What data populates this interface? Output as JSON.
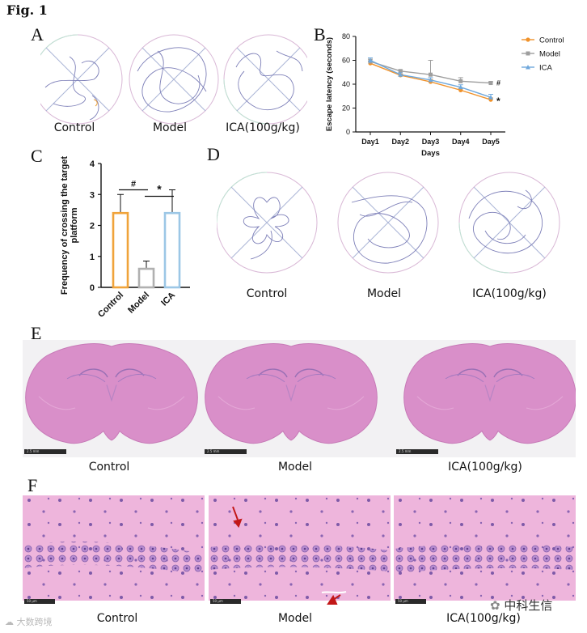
{
  "figure": {
    "title": "Fig. 1"
  },
  "panels": {
    "A": {
      "letter": "A",
      "captions": [
        "Control",
        "Model",
        "ICA(100g/kg)"
      ]
    },
    "B": {
      "letter": "B"
    },
    "C": {
      "letter": "C"
    },
    "D": {
      "letter": "D",
      "captions": [
        "Control",
        "Model",
        "ICA(100g/kg)"
      ]
    },
    "E": {
      "letter": "E",
      "captions": [
        "Control",
        "Model",
        "ICA(100g/kg)"
      ],
      "scalebar_label": "2.5 mm"
    },
    "F": {
      "letter": "F",
      "captions": [
        "Control",
        "Model",
        "ICA(100g/kg)"
      ],
      "scalebar_label": "50 μm"
    }
  },
  "chart_data": [
    {
      "id": "B",
      "type": "line",
      "ylabel": "Escape latency (seconds)",
      "xlabel": "Days",
      "categories": [
        "Day1",
        "Day2",
        "Day3",
        "Day4",
        "Day5"
      ],
      "ylim": [
        0,
        80
      ],
      "yticks": [
        0,
        20,
        40,
        60,
        80
      ],
      "series": [
        {
          "name": "Control",
          "color": "#f0922b",
          "marker": "circle",
          "values": [
            57.5,
            47.5,
            42,
            35,
            27
          ],
          "errors": [
            1.5,
            1,
            2,
            1.5,
            1.5
          ]
        },
        {
          "name": "Model",
          "color": "#9e9e9e",
          "marker": "square",
          "values": [
            59,
            51,
            48,
            42.5,
            41
          ],
          "errors": [
            2,
            1,
            12,
            3,
            1
          ]
        },
        {
          "name": "ICA",
          "color": "#6fa8dc",
          "marker": "triangle",
          "values": [
            60,
            48,
            43.5,
            37.5,
            29
          ],
          "errors": [
            2,
            1.5,
            2,
            2,
            2.5
          ]
        }
      ],
      "annotations": [
        {
          "series": "Model",
          "category": "Day5",
          "text": "#"
        },
        {
          "series": "Control",
          "category": "Day5",
          "text": "*"
        }
      ]
    },
    {
      "id": "C",
      "type": "bar",
      "ylabel": "Frequency of crossing the target platform",
      "categories": [
        "Control",
        "Model",
        "ICA"
      ],
      "values": [
        2.4,
        0.6,
        2.4
      ],
      "errors": [
        0.6,
        0.25,
        0.75
      ],
      "colors": [
        "#f0a33a",
        "#b0b0b0",
        "#9cc7e6"
      ],
      "ylim": [
        0,
        4
      ],
      "yticks": [
        0,
        1,
        2,
        3,
        4
      ],
      "significance": [
        {
          "from": "Control",
          "to": "Model",
          "text": "#"
        },
        {
          "from": "Model",
          "to": "ICA",
          "text": "*"
        }
      ]
    }
  ],
  "watermarks": {
    "left": "大数跨境",
    "right": "中科生信"
  }
}
